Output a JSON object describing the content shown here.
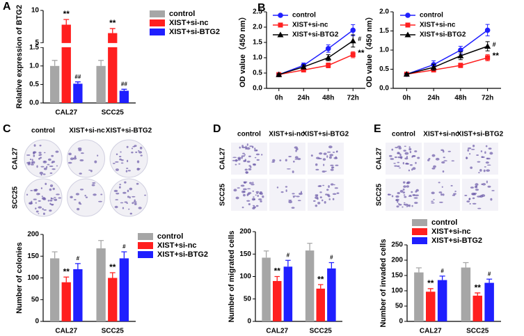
{
  "chart_data": [
    {
      "label": "A",
      "type": "bar",
      "ylabel": "Relative expression of BTG2",
      "categories": [
        "CAL27",
        "SCC25"
      ],
      "ylim": [
        0,
        10
      ],
      "ybreak": [
        1.5,
        5
      ],
      "yticks": [
        {
          "value": 0,
          "label": "0.0"
        },
        {
          "value": 0.5,
          "label": "0.5"
        },
        {
          "value": 1,
          "label": "1.0"
        },
        {
          "value": 1.5,
          "label": "1.5"
        },
        5,
        10
      ],
      "legend": "right",
      "series": [
        {
          "name": "control",
          "color": "#a6a6a6",
          "values": [
            1.0,
            1.0
          ],
          "errors": [
            0.15,
            0.15
          ]
        },
        {
          "name": "XIST+si-nc",
          "color": "#ff1f1f",
          "values": [
            7.8,
            6.5
          ],
          "errors": [
            0.8,
            0.7
          ],
          "marks": [
            "**",
            "**"
          ]
        },
        {
          "name": "XIST+si-BTG2",
          "color": "#1f1fff",
          "values": [
            0.52,
            0.33
          ],
          "errors": [
            0.05,
            0.04
          ],
          "marks": [
            "##",
            "##"
          ]
        }
      ]
    },
    {
      "label": "B",
      "type": "line",
      "ylabel": "OD value（450 nm）",
      "categories": [
        "0h",
        "24h",
        "48h",
        "72h"
      ],
      "ylim": [
        0,
        2.5
      ],
      "yticks": [
        {
          "value": 0,
          "label": "0.0"
        },
        {
          "value": 0.5,
          "label": "0.5"
        },
        {
          "value": 1,
          "label": "1.0"
        },
        {
          "value": 1.5,
          "label": "1.5"
        },
        {
          "value": 2,
          "label": "2.0"
        },
        2.5
      ],
      "legend": "top-left",
      "series": [
        {
          "name": "control",
          "color": "#1f1fff",
          "marker": "circle",
          "values": [
            0.45,
            0.75,
            1.3,
            1.9
          ],
          "errors": [
            0.03,
            0.08,
            0.12,
            0.18
          ]
        },
        {
          "name": "XIST+si-nc",
          "color": "#ff1f1f",
          "marker": "square",
          "values": [
            0.45,
            0.6,
            0.75,
            1.1
          ],
          "errors": [
            0.03,
            0.06,
            0.08,
            0.1
          ],
          "end_mark": "**"
        },
        {
          "name": "XIST+si-BTG2",
          "color": "#000000",
          "marker": "triangle",
          "values": [
            0.45,
            0.7,
            1.0,
            1.55
          ],
          "errors": [
            0.03,
            0.07,
            0.1,
            0.2
          ],
          "end_mark": "#"
        }
      ]
    },
    {
      "type": "line",
      "ylabel": "OD value（450 nm）",
      "categories": [
        "0h",
        "24h",
        "48h",
        "72h"
      ],
      "ylim": [
        0,
        2.0
      ],
      "yticks": [
        {
          "value": 0,
          "label": "0.0"
        },
        {
          "value": 0.5,
          "label": "0.5"
        },
        {
          "value": 1,
          "label": "1.0"
        },
        {
          "value": 1.5,
          "label": "1.5"
        },
        {
          "value": 2,
          "label": "2.0"
        }
      ],
      "legend": "top-left",
      "series": [
        {
          "name": "control",
          "color": "#1f1fff",
          "marker": "circle",
          "values": [
            0.37,
            0.62,
            1.0,
            1.52
          ],
          "errors": [
            0.02,
            0.1,
            0.1,
            0.15
          ]
        },
        {
          "name": "XIST+si-nc",
          "color": "#ff1f1f",
          "marker": "square",
          "values": [
            0.37,
            0.48,
            0.6,
            0.8
          ],
          "errors": [
            0.02,
            0.05,
            0.06,
            0.08
          ],
          "end_mark": "**"
        },
        {
          "name": "XIST+si-BTG2",
          "color": "#000000",
          "marker": "triangle",
          "values": [
            0.37,
            0.55,
            0.85,
            1.1
          ],
          "errors": [
            0.02,
            0.08,
            0.1,
            0.12
          ],
          "end_mark": "#"
        }
      ]
    },
    {
      "type": "bar",
      "ylabel": "Number of colonies",
      "categories": [
        "CAL27",
        "SCC25"
      ],
      "ylim": [
        0,
        200
      ],
      "yticks": [
        0,
        50,
        100,
        150,
        200
      ],
      "legend": "right",
      "series": [
        {
          "name": "control",
          "color": "#a6a6a6",
          "values": [
            145,
            168
          ],
          "errors": [
            15,
            18
          ]
        },
        {
          "name": "XIST+si-nc",
          "color": "#ff1f1f",
          "values": [
            90,
            100
          ],
          "errors": [
            12,
            12
          ],
          "marks": [
            "**",
            "**"
          ]
        },
        {
          "name": "XIST+si-BTG2",
          "color": "#1f1fff",
          "values": [
            120,
            145
          ],
          "errors": [
            13,
            15
          ],
          "marks": [
            "#",
            "#"
          ]
        }
      ]
    },
    {
      "type": "bar",
      "ylabel": "Number of migrated cells",
      "categories": [
        "CAL27",
        "SCC25"
      ],
      "ylim": [
        0,
        200
      ],
      "yticks": [
        0,
        50,
        100,
        150,
        200
      ],
      "series": [
        {
          "color": "#a6a6a6",
          "values": [
            142,
            158
          ],
          "errors": [
            15,
            16
          ]
        },
        {
          "color": "#ff1f1f",
          "values": [
            90,
            73
          ],
          "errors": [
            10,
            9
          ],
          "marks": [
            "**",
            "**"
          ]
        },
        {
          "color": "#1f1fff",
          "values": [
            122,
            118
          ],
          "errors": [
            14,
            13
          ],
          "marks": [
            "#",
            "#"
          ]
        }
      ]
    },
    {
      "type": "bar",
      "ylabel": "Number of invaded cells",
      "categories": [
        "CAL27",
        "SCC25"
      ],
      "ylim": [
        0,
        250
      ],
      "yticks": [
        0,
        50,
        100,
        150,
        200,
        250
      ],
      "legend": "top",
      "series": [
        {
          "name": "control",
          "color": "#a6a6a6",
          "values": [
            160,
            176
          ],
          "errors": [
            15,
            16
          ]
        },
        {
          "name": "XIST+si-nc",
          "color": "#ff1f1f",
          "values": [
            97,
            84
          ],
          "errors": [
            10,
            9
          ],
          "marks": [
            "**",
            "**"
          ]
        },
        {
          "name": "XIST+si-BTG2",
          "color": "#1f1fff",
          "values": [
            135,
            126
          ],
          "errors": [
            13,
            12
          ],
          "marks": [
            "#",
            "#"
          ]
        }
      ]
    }
  ],
  "image_panels": [
    {
      "label": "C",
      "columns": [
        "control",
        "XIST+si-nc",
        "XIST+si-BTG2"
      ],
      "rows": [
        "CAL27",
        "SCC25"
      ]
    },
    {
      "label": "D",
      "columns": [
        "control",
        "XIST+si-nc",
        "XIST+si-BTG2"
      ],
      "rows": [
        "CAL27",
        "SCC25"
      ]
    },
    {
      "label": "E",
      "columns": [
        "control",
        "XIST+si-nc",
        "XIST+si-BTG2"
      ],
      "rows": [
        "CAL27",
        "SCC25"
      ]
    }
  ]
}
